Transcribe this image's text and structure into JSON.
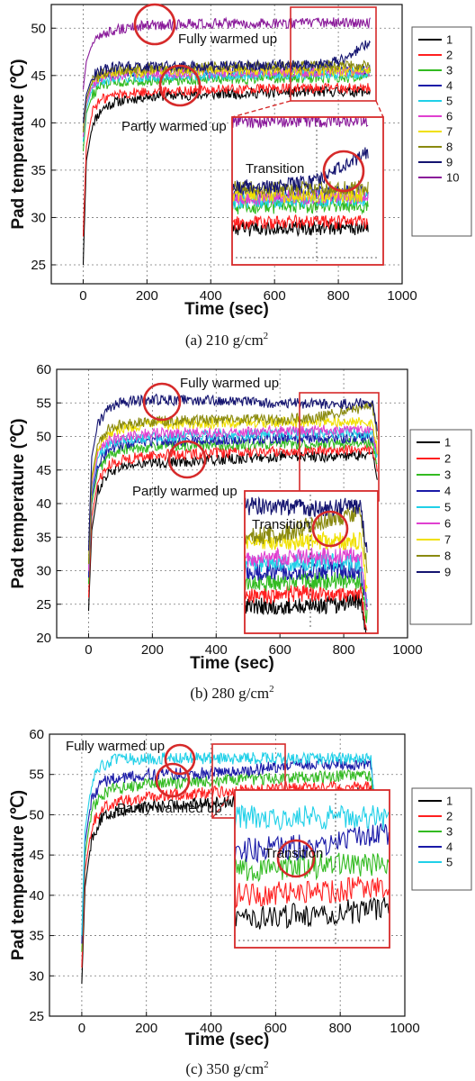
{
  "colors": {
    "1": "#000000",
    "2": "#ff2020",
    "3": "#33bb22",
    "4": "#1a1aa8",
    "5": "#20d0e8",
    "6": "#e040d0",
    "7": "#f0e000",
    "8": "#8a8a10",
    "9": "#141470",
    "10": "#8a1a9a",
    "highlight": "#d62a2a"
  },
  "charts": [
    {
      "caption": "(a)  210 g/cm",
      "caption_sup": "2",
      "xlabel": "Time (sec)",
      "ylabel": "Pad temperature (℃)",
      "annotations": {
        "fully": "Fully warmed up",
        "partly": "Partly warmed up",
        "transition": "Transition"
      }
    },
    {
      "caption": "(b)  280 g/cm",
      "caption_sup": "2",
      "xlabel": "Time (sec)",
      "ylabel": "Pad temperature (℃)",
      "annotations": {
        "fully": "Fully warmed up",
        "partly": "Partly warmed up",
        "transition": "Transition"
      }
    },
    {
      "caption": "(c)  350 g/cm",
      "caption_sup": "2",
      "xlabel": "Time (sec)",
      "ylabel": "Pad temperature (℃)",
      "annotations": {
        "fully": "Fully warmed up",
        "partly": "Partly warmed up",
        "transition": "Transition"
      }
    }
  ],
  "chart_data": [
    {
      "type": "line",
      "title": "",
      "xlabel": "Time (sec)",
      "ylabel": "Pad temperature (℃)",
      "xlim": [
        -100,
        1000
      ],
      "ylim": [
        23,
        52.5
      ],
      "xticks": [
        0,
        200,
        400,
        600,
        800,
        1000
      ],
      "yticks": [
        25,
        30,
        35,
        40,
        45,
        50
      ],
      "grid": true,
      "legend": "right",
      "series": [
        {
          "name": "1",
          "x": [
            0,
            10,
            30,
            60,
            100,
            200,
            400,
            600,
            800,
            900
          ],
          "y": [
            25,
            36,
            40,
            41.5,
            42.2,
            42.8,
            43,
            43.2,
            43.3,
            43.3
          ]
        },
        {
          "name": "2",
          "x": [
            0,
            10,
            30,
            60,
            100,
            200,
            400,
            600,
            800,
            900
          ],
          "y": [
            28,
            37.5,
            41.5,
            42.5,
            43,
            43.3,
            43.5,
            43.6,
            43.7,
            43.7
          ]
        },
        {
          "name": "3",
          "x": [
            0,
            10,
            30,
            60,
            100,
            200,
            400,
            600,
            800,
            900
          ],
          "y": [
            37,
            41,
            43,
            44,
            44.3,
            44.5,
            44.6,
            44.7,
            44.8,
            44.8
          ]
        },
        {
          "name": "4",
          "x": [
            0,
            10,
            30,
            60,
            100,
            200,
            400,
            600,
            800,
            900
          ],
          "y": [
            39,
            42.5,
            44.5,
            45,
            45.3,
            45.5,
            45.6,
            45.6,
            45.7,
            45.7
          ]
        },
        {
          "name": "5",
          "x": [
            0,
            10,
            30,
            60,
            100,
            200,
            400,
            600,
            800,
            900
          ],
          "y": [
            38,
            41.5,
            43.8,
            44.4,
            44.7,
            44.9,
            45,
            45.1,
            45.2,
            45.2
          ]
        },
        {
          "name": "6",
          "x": [
            0,
            10,
            30,
            60,
            100,
            200,
            400,
            600,
            800,
            900
          ],
          "y": [
            38.5,
            42,
            44.2,
            44.8,
            45,
            45.2,
            45.3,
            45.3,
            45.4,
            45.4
          ]
        },
        {
          "name": "7",
          "x": [
            0,
            10,
            30,
            60,
            100,
            200,
            400,
            600,
            800,
            900
          ],
          "y": [
            39,
            42.5,
            44.5,
            45.1,
            45.3,
            45.4,
            45.5,
            45.5,
            45.5,
            45.5
          ]
        },
        {
          "name": "8",
          "x": [
            0,
            10,
            30,
            60,
            100,
            200,
            400,
            600,
            800,
            900
          ],
          "y": [
            39,
            42.5,
            44.6,
            45.3,
            45.6,
            45.8,
            45.9,
            46,
            46,
            46
          ]
        },
        {
          "name": "9",
          "x": [
            0,
            10,
            30,
            60,
            100,
            200,
            400,
            600,
            700,
            800,
            900
          ],
          "y": [
            40,
            43,
            45,
            45.6,
            45.9,
            46,
            46,
            46.1,
            46.1,
            46.5,
            48.5
          ]
        },
        {
          "name": "10",
          "x": [
            0,
            10,
            30,
            60,
            100,
            200,
            400,
            600,
            800,
            900
          ],
          "y": [
            43.5,
            46.5,
            48.5,
            49.3,
            49.8,
            50.3,
            50.5,
            50.5,
            50.6,
            50.6
          ]
        }
      ]
    },
    {
      "type": "line",
      "title": "",
      "xlabel": "Time (sec)",
      "ylabel": "Pad temperature (℃)",
      "xlim": [
        -100,
        1000
      ],
      "ylim": [
        20,
        60
      ],
      "xticks": [
        0,
        200,
        400,
        600,
        800,
        1000
      ],
      "yticks": [
        20,
        25,
        30,
        35,
        40,
        45,
        50,
        55,
        60
      ],
      "grid": true,
      "legend": "right",
      "series": [
        {
          "name": "1",
          "x": [
            0,
            10,
            30,
            60,
            100,
            200,
            400,
            600,
            800,
            890,
            905
          ],
          "y": [
            24,
            36,
            42,
            44.5,
            45.5,
            46,
            46.5,
            47,
            47,
            47.3,
            44
          ]
        },
        {
          "name": "2",
          "x": [
            0,
            10,
            30,
            60,
            100,
            200,
            400,
            600,
            800,
            890,
            905
          ],
          "y": [
            26,
            38,
            43.5,
            45.5,
            46.5,
            47.2,
            47.5,
            47.8,
            48,
            48,
            45
          ]
        },
        {
          "name": "3",
          "x": [
            0,
            10,
            30,
            60,
            100,
            200,
            400,
            600,
            800,
            890,
            905
          ],
          "y": [
            28,
            40,
            45,
            47,
            48,
            48.5,
            48.7,
            48.8,
            49,
            49,
            46
          ]
        },
        {
          "name": "4",
          "x": [
            0,
            10,
            30,
            60,
            100,
            200,
            400,
            600,
            800,
            890,
            905
          ],
          "y": [
            29,
            41,
            46,
            48,
            48.8,
            49.3,
            49.5,
            49.7,
            49.8,
            49.8,
            47
          ]
        },
        {
          "name": "5",
          "x": [
            0,
            10,
            30,
            60,
            100,
            200,
            400,
            600,
            800,
            890,
            905
          ],
          "y": [
            30,
            42,
            47,
            48.8,
            49.5,
            50,
            50.2,
            50.4,
            50.5,
            50.5,
            47
          ]
        },
        {
          "name": "6",
          "x": [
            0,
            10,
            30,
            60,
            100,
            200,
            400,
            600,
            800,
            890,
            905
          ],
          "y": [
            30,
            42.5,
            47.5,
            49.3,
            50,
            50.5,
            50.6,
            50.8,
            51,
            51,
            47
          ]
        },
        {
          "name": "7",
          "x": [
            0,
            10,
            30,
            60,
            100,
            200,
            400,
            600,
            800,
            890,
            905
          ],
          "y": [
            31,
            43.5,
            48.5,
            50.5,
            51.2,
            51.8,
            52,
            52.1,
            52.2,
            52.2,
            48
          ]
        },
        {
          "name": "8",
          "x": [
            0,
            10,
            30,
            60,
            100,
            200,
            400,
            600,
            700,
            800,
            890,
            905
          ],
          "y": [
            31,
            44,
            49,
            51,
            51.8,
            52.3,
            52.5,
            52.6,
            52.7,
            53.8,
            54.5,
            50
          ]
        },
        {
          "name": "9",
          "x": [
            0,
            10,
            30,
            60,
            100,
            200,
            400,
            600,
            800,
            890,
            905
          ],
          "y": [
            33,
            47,
            52,
            54,
            55,
            55.5,
            55.3,
            55,
            54.8,
            55,
            51
          ]
        }
      ]
    },
    {
      "type": "line",
      "title": "",
      "xlabel": "Time (sec)",
      "ylabel": "Pad temperature (℃)",
      "xlim": [
        -100,
        1000
      ],
      "ylim": [
        25,
        60
      ],
      "xticks": [
        0,
        200,
        400,
        600,
        800,
        1000
      ],
      "yticks": [
        25,
        30,
        35,
        40,
        45,
        50,
        55,
        60
      ],
      "grid": true,
      "legend": "right",
      "series": [
        {
          "name": "1",
          "x": [
            0,
            10,
            30,
            60,
            100,
            200,
            400,
            600,
            800,
            895,
            905
          ],
          "y": [
            29,
            41,
            47,
            49.5,
            50.3,
            51,
            51.5,
            52,
            52.5,
            52.8,
            50
          ]
        },
        {
          "name": "2",
          "x": [
            0,
            10,
            30,
            60,
            100,
            200,
            400,
            600,
            800,
            895,
            905
          ],
          "y": [
            31,
            43,
            48.5,
            50.8,
            51.5,
            52.2,
            52.8,
            53.2,
            53.5,
            53.5,
            50
          ]
        },
        {
          "name": "3",
          "x": [
            0,
            10,
            30,
            60,
            100,
            200,
            400,
            600,
            800,
            895,
            905
          ],
          "y": [
            33,
            45,
            50.5,
            52.5,
            53.2,
            53.8,
            54.2,
            54.5,
            54.8,
            54.8,
            51
          ]
        },
        {
          "name": "4",
          "x": [
            0,
            10,
            30,
            60,
            100,
            200,
            400,
            500,
            600,
            800,
            895,
            905
          ],
          "y": [
            34,
            46.5,
            52,
            54,
            54.5,
            55,
            55.2,
            55.4,
            56,
            56.3,
            56.3,
            52
          ]
        },
        {
          "name": "5",
          "x": [
            0,
            10,
            30,
            60,
            100,
            200,
            400,
            600,
            800,
            895,
            905
          ],
          "y": [
            35,
            48,
            54,
            56,
            56.8,
            57,
            57,
            57,
            57,
            57,
            53
          ]
        }
      ]
    }
  ]
}
